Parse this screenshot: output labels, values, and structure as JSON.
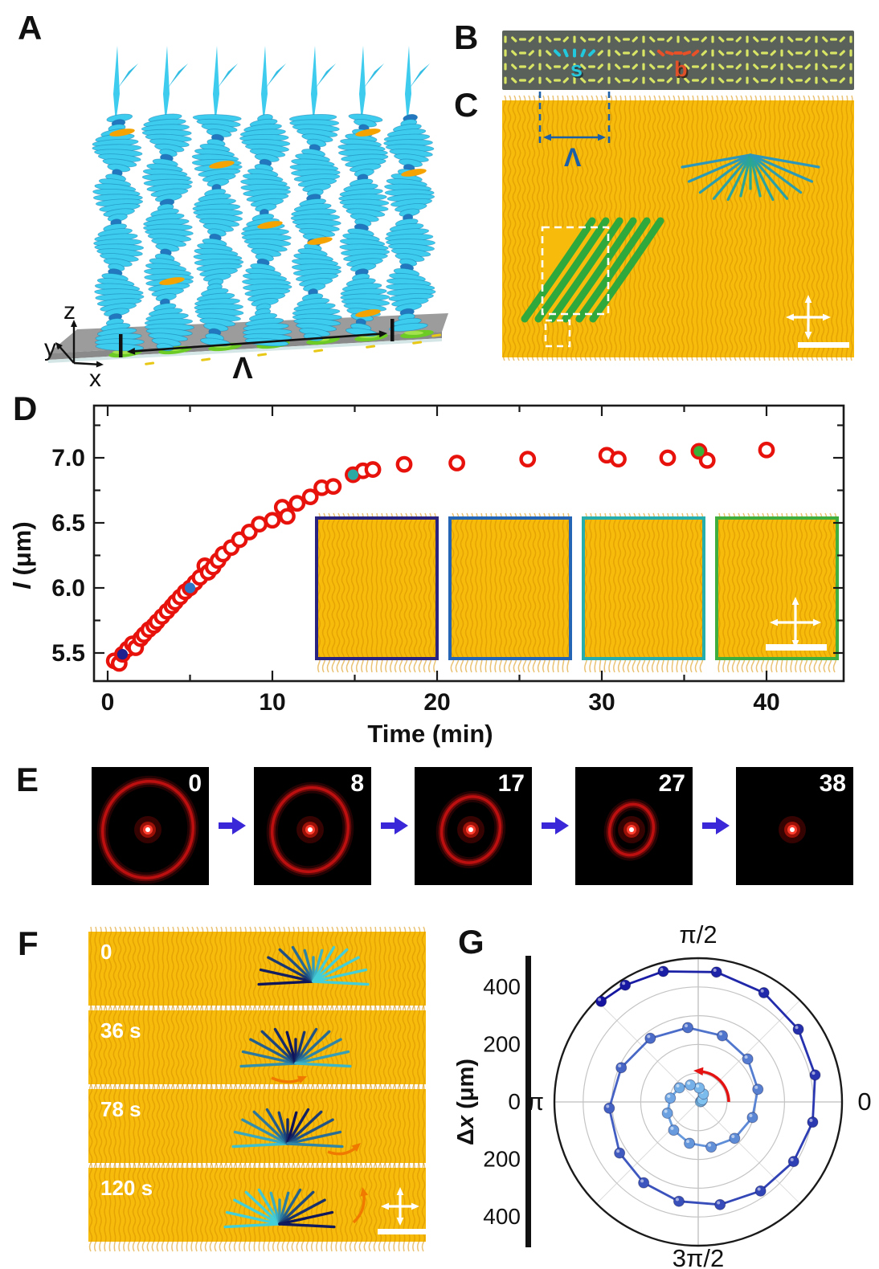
{
  "panels": {
    "A": {
      "label": "A",
      "axis_x": "x",
      "axis_y": "y",
      "axis_z": "z",
      "pitch_label": "Λ"
    },
    "B": {
      "label": "B",
      "splay_label": "s",
      "bend_label": "b"
    },
    "C": {
      "label": "C",
      "pitch_label": "Λ"
    },
    "D": {
      "label": "D"
    },
    "E": {
      "label": "E",
      "frame_times": [
        "0",
        "8",
        "17",
        "27",
        "38"
      ]
    },
    "F": {
      "label": "F",
      "frame_times": [
        "0",
        "36 s",
        "78 s",
        "120 s"
      ]
    },
    "G": {
      "label": "G"
    }
  },
  "colors": {
    "red_marker": "#E8120C",
    "texture_yellow": "#F6BB0B",
    "texture_line": "#D99000",
    "helix_cyan": "#3DCBEE",
    "director_dash": "#D7E464",
    "slab_gray": "#5A615B",
    "lambda_blue": "#1B5FA8",
    "e_arrow_purple": "#3A28D8",
    "f_arrow_orange": "#F07A00",
    "highlight_navy": "#20208F",
    "highlight_blue": "#2E74C4",
    "highlight_teal": "#2BAAA4",
    "highlight_green": "#39B239"
  },
  "chart_data": [
    {
      "panel": "D",
      "type": "scatter",
      "xlabel": "Time (min)",
      "ylabel": "l (μm)",
      "xlim": [
        -0.7,
        44.7
      ],
      "ylim": [
        5.28,
        7.42
      ],
      "xticks": [
        0,
        10,
        20,
        30,
        40
      ],
      "xminor_step": 5,
      "yticks": [
        "5.5",
        "6.0",
        "6.5",
        "7.0"
      ],
      "yminor_step": 0.25,
      "marker": "open-circle",
      "marker_color": "#E8120C",
      "error_bar": 0.035,
      "points": [
        [
          0.4,
          5.44
        ],
        [
          0.7,
          5.42
        ],
        [
          0.9,
          5.49
        ],
        [
          1.2,
          5.53
        ],
        [
          1.5,
          5.57
        ],
        [
          1.7,
          5.54
        ],
        [
          2.0,
          5.61
        ],
        [
          2.2,
          5.64
        ],
        [
          2.5,
          5.68
        ],
        [
          2.8,
          5.71
        ],
        [
          3.0,
          5.74
        ],
        [
          3.3,
          5.78
        ],
        [
          3.6,
          5.82
        ],
        [
          3.9,
          5.86
        ],
        [
          4.1,
          5.89
        ],
        [
          4.4,
          5.93
        ],
        [
          4.7,
          5.97
        ],
        [
          5.0,
          6.0
        ],
        [
          5.3,
          6.04
        ],
        [
          5.6,
          6.08
        ],
        [
          5.9,
          6.17
        ],
        [
          6.1,
          6.12
        ],
        [
          6.4,
          6.16
        ],
        [
          6.7,
          6.21
        ],
        [
          7.0,
          6.26
        ],
        [
          7.5,
          6.31
        ],
        [
          8.0,
          6.37
        ],
        [
          8.6,
          6.43
        ],
        [
          9.2,
          6.49
        ],
        [
          10.0,
          6.52
        ],
        [
          10.6,
          6.62
        ],
        [
          10.9,
          6.55
        ],
        [
          11.5,
          6.65
        ],
        [
          12.3,
          6.7
        ],
        [
          13.0,
          6.77
        ],
        [
          13.7,
          6.78
        ],
        [
          14.9,
          6.87
        ],
        [
          15.5,
          6.9
        ],
        [
          16.1,
          6.91
        ],
        [
          18.0,
          6.95
        ],
        [
          21.2,
          6.96
        ],
        [
          25.5,
          6.99
        ],
        [
          30.3,
          7.02
        ],
        [
          31.0,
          6.99
        ],
        [
          34.0,
          7.0
        ],
        [
          35.9,
          7.05
        ],
        [
          36.4,
          6.98
        ],
        [
          40.0,
          7.06
        ]
      ],
      "highlight_points": [
        {
          "t": 0.9,
          "l": 5.49,
          "color": "#20208F"
        },
        {
          "t": 5.0,
          "l": 6.0,
          "color": "#2E74C4"
        },
        {
          "t": 14.9,
          "l": 6.87,
          "color": "#2BAAA4"
        },
        {
          "t": 35.9,
          "l": 7.05,
          "color": "#39B239"
        }
      ],
      "inset_border_colors": [
        "#2B2380",
        "#2565B5",
        "#28ADAD",
        "#3FAE3F"
      ]
    },
    {
      "panel": "G",
      "type": "polar_scatter",
      "radial_label": "Δx (μm)",
      "radial_tick_labels": [
        "400",
        "200",
        "0",
        "200",
        "400"
      ],
      "rmax": 500,
      "grid_radii": [
        100,
        200,
        300,
        400
      ],
      "angle_label_top": "π/2",
      "angle_label_right": "0",
      "angle_label_left": "π",
      "angle_label_bottom": "3π/2",
      "spiral_color_start": "#86CCF4",
      "spiral_color_end": "#1414A0",
      "rotation_direction": "counterclockwise",
      "rotation_arrow_color": "#E51212",
      "spiral_points": [
        [
          6,
          8
        ],
        [
          17,
          12
        ],
        [
          29,
          16
        ],
        [
          57,
          33
        ],
        [
          86,
          49
        ],
        [
          115,
          65
        ],
        [
          143,
          82
        ],
        [
          172,
          98
        ],
        [
          200,
          114
        ],
        [
          229,
          130
        ],
        [
          258,
          147
        ],
        [
          286,
          163
        ],
        [
          315,
          179
        ],
        [
          344,
          196
        ],
        [
          372,
          212
        ],
        [
          401,
          228
        ],
        [
          430,
          245
        ],
        [
          458,
          261
        ],
        [
          487,
          277
        ],
        [
          516,
          293
        ],
        [
          544,
          310
        ],
        [
          573,
          326
        ],
        [
          596,
          339
        ],
        [
          619,
          352
        ],
        [
          642,
          365
        ],
        [
          665,
          378
        ],
        [
          688,
          391
        ],
        [
          710,
          404
        ],
        [
          733,
          417
        ],
        [
          756,
          430
        ],
        [
          779,
          443
        ],
        [
          802,
          456
        ],
        [
          825,
          470
        ],
        [
          842,
          479
        ],
        [
          854,
          486
        ]
      ]
    }
  ]
}
